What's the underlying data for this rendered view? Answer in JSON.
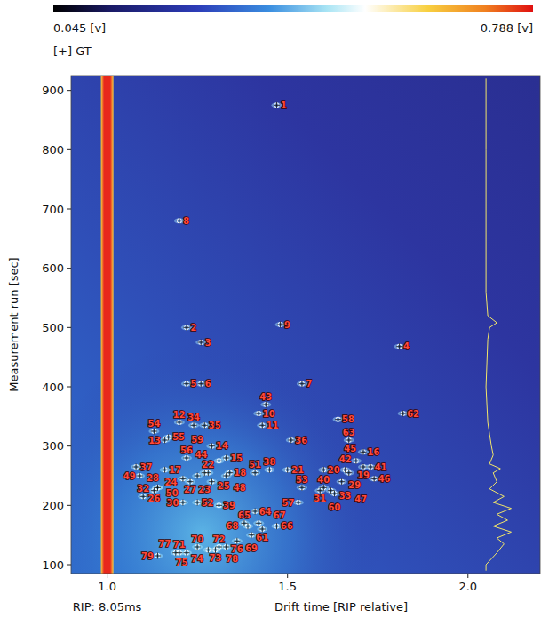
{
  "chart_data": {
    "type": "scatter",
    "x_label": "Drift time [RIP relative]",
    "y_label": "Measurement run [sec]",
    "annotations": [
      "[+] GT"
    ],
    "xlim": [
      0.9,
      2.2
    ],
    "ylim": [
      85,
      925
    ],
    "xticks": [
      {
        "value": 1.0,
        "label": "1.0"
      },
      {
        "value": 1.5,
        "label": "1.5"
      },
      {
        "value": 2.0,
        "label": "2.0"
      }
    ],
    "yticks": [
      100,
      200,
      300,
      400,
      500,
      600,
      700,
      800,
      900
    ],
    "grid": false,
    "marker": "circle-cross",
    "color": "#ff4a3a",
    "rip": {
      "x": 1.0,
      "label": "RIP: 8.05ms",
      "color": "#e8281c"
    },
    "colorbar": {
      "range": [
        0.045,
        0.788
      ],
      "ticks": [
        {
          "value": 0.045,
          "label": "0.045 [v]"
        },
        {
          "value": 0.788,
          "label": "0.788 [v]"
        }
      ]
    },
    "labels": [
      "1",
      "2",
      "3",
      "4",
      "5",
      "6",
      "7",
      "8",
      "9",
      "10",
      "11",
      "12",
      "13",
      "14",
      "15",
      "16",
      "17",
      "18",
      "19",
      "20",
      "21",
      "22",
      "23",
      "24",
      "25",
      "26",
      "27",
      "28",
      "29",
      "30",
      "31",
      "32",
      "33",
      "34",
      "35",
      "36",
      "37",
      "38",
      "39",
      "40",
      "41",
      "42",
      "43",
      "44",
      "45",
      "46",
      "47",
      "48",
      "49",
      "50",
      "51",
      "52",
      "53",
      "54",
      "55",
      "56",
      "57",
      "58",
      "59",
      "60",
      "61",
      "62",
      "63",
      "64",
      "65",
      "66",
      "67",
      "68",
      "69",
      "70",
      "71",
      "72",
      "73",
      "74",
      "75",
      "76",
      "77",
      "78",
      "79"
    ],
    "x": [
      1.47,
      1.22,
      1.26,
      1.81,
      1.22,
      1.26,
      1.54,
      1.2,
      1.48,
      1.42,
      1.43,
      1.2,
      1.16,
      1.29,
      1.33,
      1.71,
      1.16,
      1.34,
      1.71,
      1.6,
      1.5,
      1.28,
      1.27,
      1.21,
      1.29,
      1.13,
      1.23,
      1.14,
      1.67,
      1.21,
      1.59,
      1.1,
      1.62,
      1.24,
      1.27,
      1.51,
      1.08,
      1.45,
      1.31,
      1.6,
      1.73,
      1.66,
      1.44,
      1.31,
      1.69,
      1.74,
      1.65,
      1.33,
      1.09,
      1.14,
      1.41,
      1.25,
      1.54,
      1.13,
      1.17,
      1.22,
      1.53,
      1.64,
      1.25,
      1.63,
      1.43,
      1.82,
      1.67,
      1.41,
      1.38,
      1.47,
      1.42,
      1.39,
      1.4,
      1.25,
      1.2,
      1.31,
      1.3,
      1.28,
      1.22,
      1.36,
      1.19,
      1.33,
      1.14
    ],
    "values": [
      875,
      500,
      475,
      468,
      405,
      405,
      405,
      680,
      505,
      355,
      335,
      340,
      310,
      300,
      280,
      290,
      260,
      255,
      265,
      260,
      260,
      255,
      255,
      245,
      240,
      225,
      240,
      230,
      255,
      205,
      225,
      215,
      225,
      335,
      335,
      310,
      265,
      260,
      200,
      230,
      265,
      260,
      370,
      275,
      275,
      245,
      240,
      250,
      250,
      230,
      255,
      205,
      230,
      325,
      315,
      280,
      205,
      345,
      250,
      220,
      160,
      355,
      310,
      190,
      170,
      165,
      170,
      165,
      150,
      130,
      120,
      130,
      125,
      125,
      120,
      140,
      120,
      130,
      115
    ],
    "spectrum": {
      "color": "#f2e66a",
      "x": [
        2.05,
        2.05,
        2.05,
        2.05,
        2.055,
        2.08,
        2.06,
        2.055,
        2.05,
        2.055,
        2.06,
        2.065,
        2.07,
        2.06,
        2.09,
        2.07,
        2.08,
        2.06,
        2.1,
        2.07,
        2.12,
        2.08,
        2.11,
        2.07,
        2.12,
        2.08,
        2.1,
        2.08,
        2.05,
        2.05
      ],
      "values": [
        920,
        800,
        700,
        560,
        520,
        508,
        500,
        480,
        400,
        340,
        320,
        300,
        285,
        270,
        262,
        255,
        240,
        228,
        215,
        205,
        195,
        185,
        175,
        165,
        155,
        145,
        135,
        120,
        100,
        90
      ]
    }
  }
}
